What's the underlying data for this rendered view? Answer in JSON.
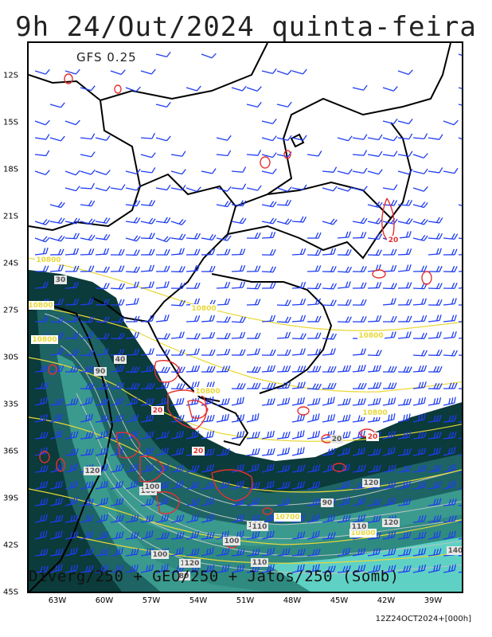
{
  "title": "9h 24/Out/2024 quinta-feira",
  "model": "GFS 0.25",
  "footer": "Diverg/250 + GEO/250 + Jatos/250 (Somb)",
  "stamp": "12Z24OCT2024+[000h]",
  "lat_labels": [
    "12S",
    "15S",
    "18S",
    "21S",
    "24S",
    "27S",
    "30S",
    "33S",
    "36S",
    "39S",
    "42S",
    "45S"
  ],
  "lon_labels": [
    "63W",
    "60W",
    "57W",
    "54W",
    "51W",
    "48W",
    "45W",
    "42W",
    "39W"
  ],
  "geo_contour_labels": [
    "10800",
    "10800",
    "10800",
    "10800",
    "10800",
    "10800",
    "10800",
    "10700",
    "10800"
  ],
  "jet_labels": [
    "30",
    "90",
    "40",
    "100",
    "120",
    "110",
    "110",
    "120",
    "100",
    "90",
    "110",
    "120",
    "140",
    "120",
    "100",
    "110",
    "120",
    "100",
    "80",
    "20"
  ],
  "divergence_labels": [
    "20",
    "20",
    "20",
    "20"
  ],
  "colors": {
    "jet_dark": "#0b3b3a",
    "jet_mid": "#1e6464",
    "jet_light": "#3a9a8e",
    "jet_bright": "#5fd1c4",
    "barb": "#1f3df2",
    "geo": "#e8d83a",
    "divergence": "#e53030",
    "border": "#000000"
  }
}
